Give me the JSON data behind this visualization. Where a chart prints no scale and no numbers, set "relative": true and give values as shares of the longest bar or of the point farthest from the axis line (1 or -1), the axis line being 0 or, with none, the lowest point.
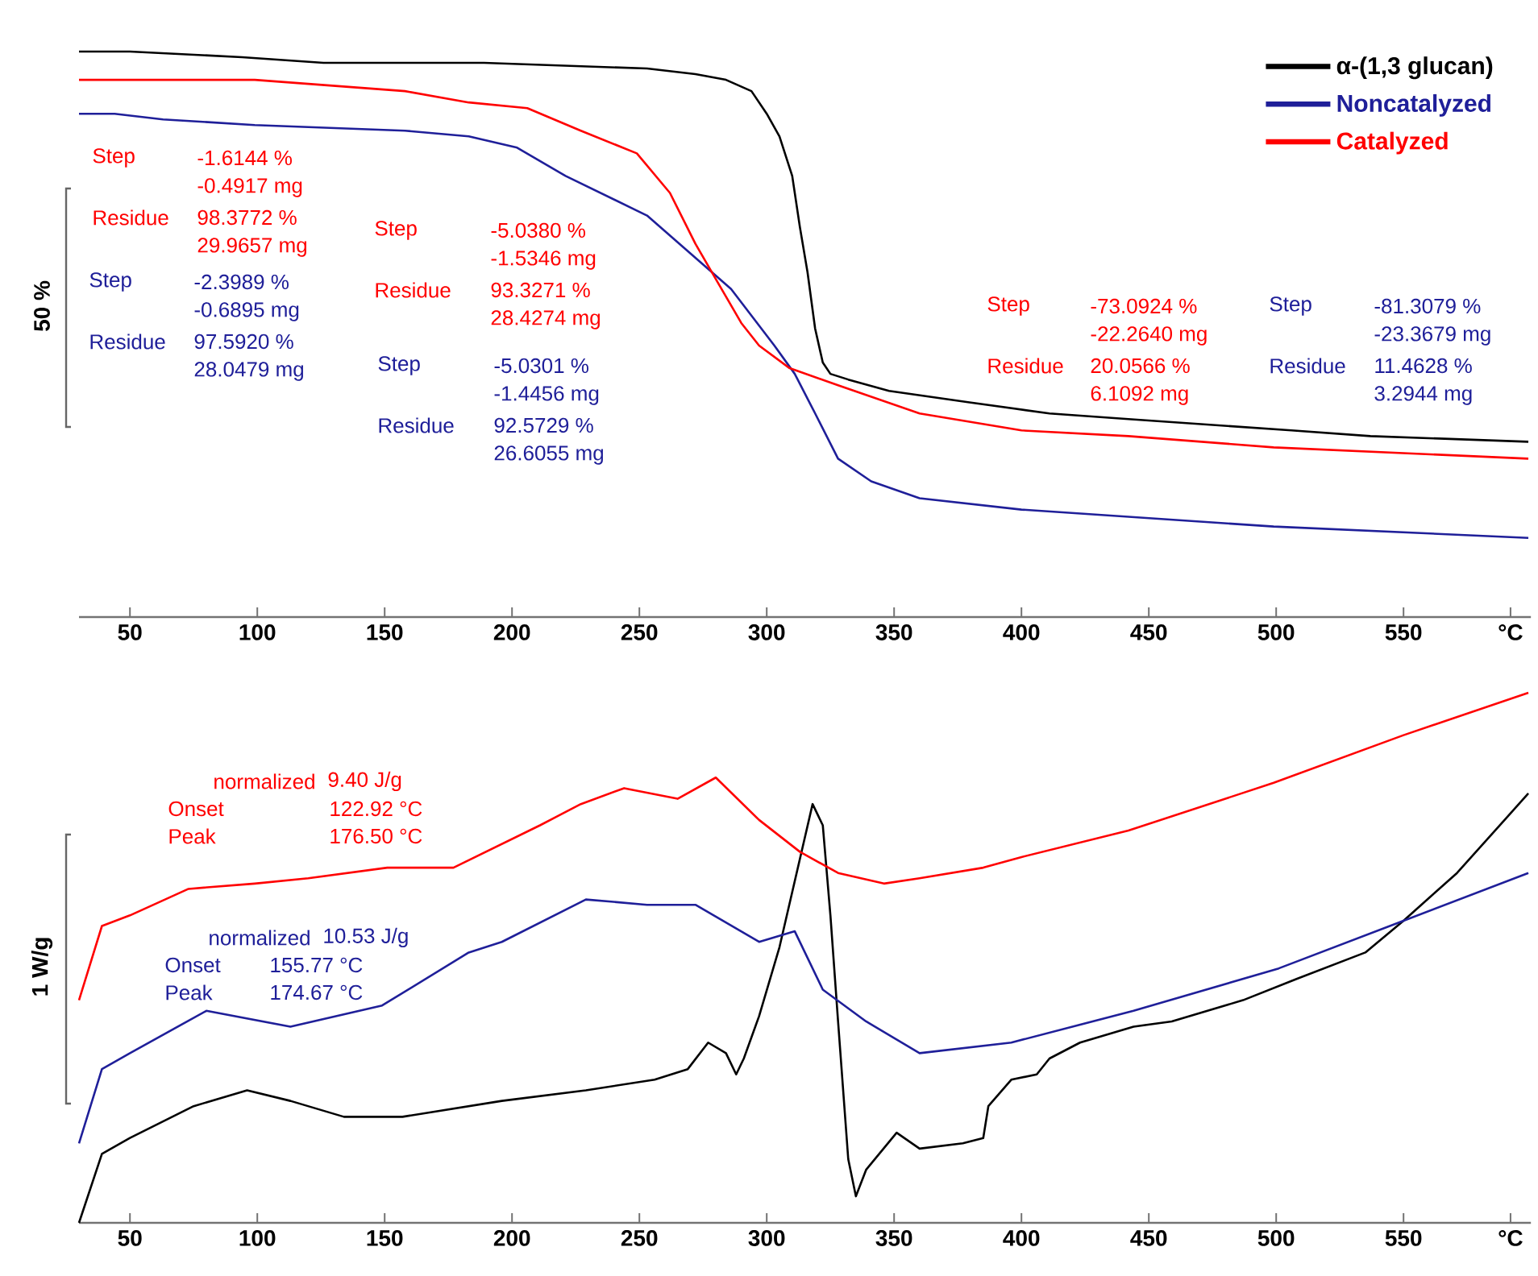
{
  "chart_data": [
    {
      "type": "line",
      "relative": true,
      "ylabel": "50 %",
      "legend": "top right",
      "xlim": [
        30,
        600
      ],
      "xticks": [
        50,
        100,
        150,
        200,
        250,
        300,
        350,
        400,
        450,
        500,
        550,
        {
          "value": 592,
          "label": "°C"
        }
      ],
      "series": [
        {
          "name": "α-(1,3 glucan)",
          "color": "#000000",
          "x": [
            30,
            50,
            94,
            126,
            189,
            253,
            272,
            284,
            294,
            300,
            305,
            310,
            313,
            316,
            319,
            322,
            325,
            332,
            348,
            379,
            411,
            442,
            474,
            506,
            537,
            599
          ],
          "values": [
            1.0,
            1.0,
            0.99,
            0.98,
            0.98,
            0.97,
            0.96,
            0.95,
            0.93,
            0.89,
            0.85,
            0.78,
            0.69,
            0.61,
            0.51,
            0.45,
            0.43,
            0.42,
            0.4,
            0.38,
            0.36,
            0.35,
            0.34,
            0.33,
            0.32,
            0.31
          ]
        },
        {
          "name": "Noncatalyzed",
          "color": "#1f1f99",
          "x": [
            30,
            44,
            63,
            99,
            158,
            183,
            202,
            221,
            253,
            286,
            303,
            311,
            319,
            328,
            341,
            360,
            400,
            499,
            599
          ],
          "values": [
            0.89,
            0.89,
            0.88,
            0.87,
            0.86,
            0.85,
            0.83,
            0.78,
            0.71,
            0.58,
            0.48,
            0.43,
            0.36,
            0.28,
            0.24,
            0.21,
            0.19,
            0.16,
            0.14
          ]
        },
        {
          "name": "Catalyzed",
          "color": "#ff0000",
          "x": [
            30,
            63,
            99,
            158,
            183,
            206,
            227,
            249,
            262,
            272,
            281,
            290,
            297,
            309,
            328,
            360,
            400,
            442,
            499,
            599
          ],
          "values": [
            0.95,
            0.95,
            0.95,
            0.93,
            0.91,
            0.9,
            0.86,
            0.82,
            0.75,
            0.66,
            0.59,
            0.52,
            0.48,
            0.44,
            0.41,
            0.36,
            0.33,
            0.32,
            0.3,
            0.28
          ]
        }
      ],
      "annotations": [
        "Step",
        "-1.6144 %",
        "-0.4917 mg",
        "Residue",
        "98.3772 %",
        "29.9657 mg",
        "Step",
        "-2.3989 %",
        "-0.6895 mg",
        "Residue",
        "97.5920 %",
        "28.0479 mg",
        "Step",
        "-5.0380 %",
        "-1.5346 mg",
        "Residue",
        "93.3271 %",
        "28.4274 mg",
        "Step",
        "-5.0301 %",
        "-1.4456 mg",
        "Residue",
        "92.5729 %",
        "26.6055 mg",
        "Step",
        "-73.0924 %",
        "-22.2640 mg",
        "Residue",
        "20.0566 %",
        "6.1092 mg",
        "Step",
        "-81.3079 %",
        "-23.3679 mg",
        "Residue",
        "11.4628 %",
        "3.2944 mg"
      ]
    },
    {
      "type": "line",
      "relative": true,
      "ylabel": "1 W/g",
      "xlim": [
        30,
        600
      ],
      "xticks": [
        50,
        100,
        150,
        200,
        250,
        300,
        350,
        400,
        450,
        500,
        550,
        {
          "value": 592,
          "label": "°C"
        }
      ],
      "series": [
        {
          "color": "#000000",
          "x": [
            30,
            39,
            50,
            75,
            96,
            113,
            134,
            157,
            196,
            229,
            256,
            269,
            277,
            284,
            288,
            291,
            297,
            305,
            318,
            322,
            325,
            328,
            332,
            335,
            339,
            351,
            360,
            377,
            385,
            387,
            396,
            406,
            411,
            423,
            444,
            459,
            487,
            508,
            535,
            550,
            571,
            599
          ],
          "values": [
            0.0,
            0.13,
            0.16,
            0.22,
            0.25,
            0.23,
            0.2,
            0.2,
            0.23,
            0.25,
            0.27,
            0.29,
            0.34,
            0.32,
            0.28,
            0.31,
            0.39,
            0.52,
            0.79,
            0.75,
            0.58,
            0.38,
            0.12,
            0.05,
            0.1,
            0.17,
            0.14,
            0.15,
            0.16,
            0.22,
            0.27,
            0.28,
            0.31,
            0.34,
            0.37,
            0.38,
            0.42,
            0.46,
            0.51,
            0.57,
            0.66,
            0.81
          ]
        },
        {
          "color": "#1f1f99",
          "x": [
            30,
            39,
            50,
            80,
            113,
            149,
            183,
            196,
            229,
            253,
            272,
            297,
            311,
            322,
            339,
            360,
            396,
            444,
            501,
            550,
            599
          ],
          "values": [
            0.15,
            0.29,
            0.32,
            0.4,
            0.37,
            0.41,
            0.51,
            0.53,
            0.61,
            0.6,
            0.6,
            0.53,
            0.55,
            0.44,
            0.38,
            0.32,
            0.34,
            0.4,
            0.48,
            0.57,
            0.66
          ]
        },
        {
          "color": "#ff0000",
          "x": [
            30,
            39,
            50,
            73,
            99,
            120,
            151,
            177,
            211,
            227,
            244,
            265,
            280,
            297,
            313,
            328,
            346,
            360,
            385,
            400,
            442,
            499,
            550,
            599
          ],
          "values": [
            0.42,
            0.56,
            0.58,
            0.63,
            0.64,
            0.65,
            0.67,
            0.67,
            0.75,
            0.79,
            0.82,
            0.8,
            0.84,
            0.76,
            0.7,
            0.66,
            0.64,
            0.65,
            0.67,
            0.69,
            0.74,
            0.83,
            0.92,
            1.0
          ]
        }
      ],
      "annotations": [
        "normalized",
        "9.40 J/g",
        "Onset",
        "122.92 °C",
        "Peak",
        "176.50 °C",
        "normalized",
        "10.53 J/g",
        "Onset",
        "155.77 °C",
        "Peak",
        "174.67 °C"
      ]
    }
  ]
}
